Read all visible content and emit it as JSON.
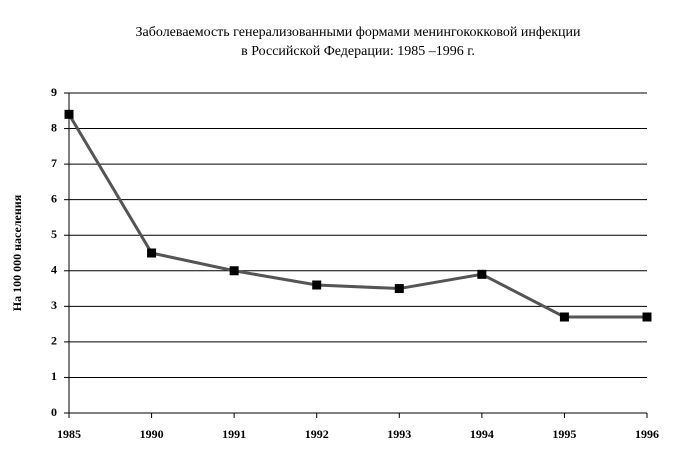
{
  "chart_data": {
    "type": "line",
    "title": [
      "Заболеваемость генерализованными формами менингококковой инфекции",
      "в Российской Федерации: 1985 –1996 г."
    ],
    "y_label": "На 100 000 населения",
    "categories": [
      "1985",
      "1990",
      "1991",
      "1992",
      "1993",
      "1994",
      "1995",
      "1996"
    ],
    "series": [
      {
        "color": "#555555",
        "values": [
          8.4,
          4.5,
          4.0,
          3.6,
          3.5,
          3.9,
          2.7,
          2.7
        ]
      }
    ],
    "ylim": [
      0,
      9
    ],
    "yticks": [
      0,
      1,
      2,
      3,
      4,
      5,
      6,
      7,
      8,
      9
    ],
    "grid": true
  }
}
